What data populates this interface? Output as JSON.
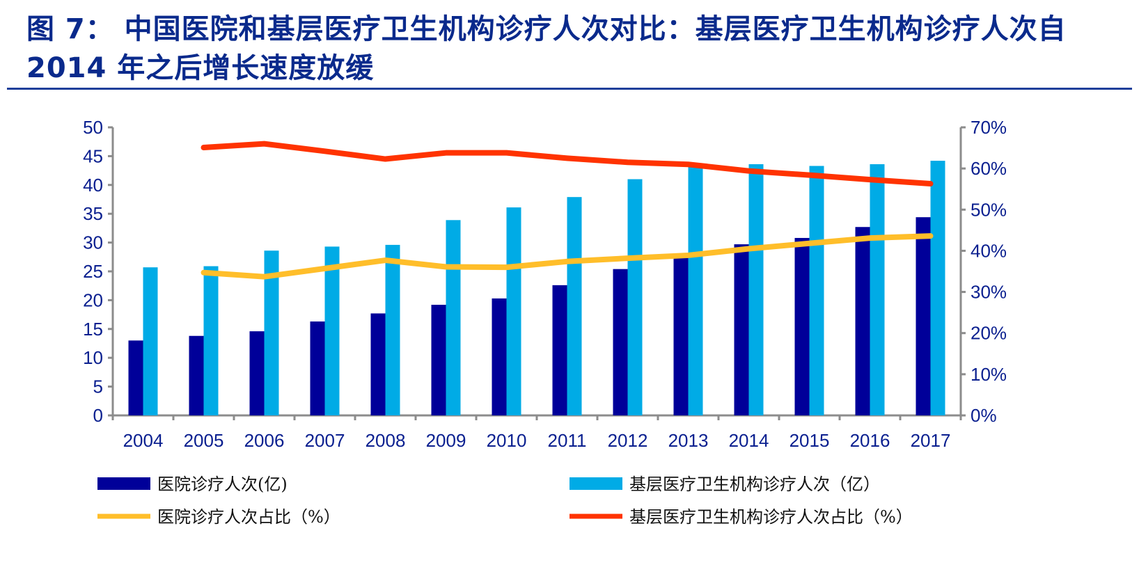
{
  "title": "图 7： 中国医院和基层医疗卫生机构诊疗人次对比：基层医疗卫生机构诊疗人次自2014 年之后增长速度放缓",
  "chart_data": {
    "type": "bar",
    "categories": [
      "2004",
      "2005",
      "2006",
      "2007",
      "2008",
      "2009",
      "2010",
      "2011",
      "2012",
      "2013",
      "2014",
      "2015",
      "2016",
      "2017"
    ],
    "y_left": {
      "range": [
        0,
        50
      ],
      "ticks": [
        "0",
        "5",
        "10",
        "15",
        "20",
        "25",
        "30",
        "35",
        "40",
        "45",
        "50"
      ]
    },
    "y_right": {
      "range": [
        0,
        70
      ],
      "ticks": [
        "0%",
        "10%",
        "20%",
        "30%",
        "40%",
        "50%",
        "60%",
        "70%"
      ]
    },
    "grid": false,
    "legend_position": "bottom",
    "series": [
      {
        "name": "医院诊疗人次(亿)",
        "type": "bar",
        "axis": "left",
        "color": "#000099",
        "values": [
          13.0,
          13.8,
          14.6,
          16.3,
          17.7,
          19.2,
          20.3,
          22.6,
          25.4,
          27.4,
          29.7,
          30.8,
          32.7,
          34.4
        ]
      },
      {
        "name": "基层医疗卫生机构诊疗人次（亿）",
        "type": "bar",
        "axis": "left",
        "color": "#00abe6",
        "values": [
          25.7,
          25.9,
          28.6,
          29.3,
          29.6,
          33.9,
          36.1,
          37.9,
          41.0,
          43.6,
          43.6,
          43.3,
          43.6,
          44.2
        ]
      },
      {
        "name": "医院诊疗人次占比（%）",
        "type": "line",
        "axis": "right",
        "color": "#ffbe2a",
        "values": [
          null,
          34.7,
          33.7,
          35.7,
          37.7,
          36.1,
          36.0,
          37.4,
          38.2,
          38.9,
          40.5,
          41.8,
          43.1,
          43.6
        ]
      },
      {
        "name": "基层医疗卫生机构诊疗人次占比（%）",
        "type": "line",
        "axis": "right",
        "color": "#ff3300",
        "values": [
          null,
          65.1,
          66.0,
          64.2,
          62.3,
          63.8,
          63.8,
          62.5,
          61.5,
          61.0,
          59.4,
          58.4,
          57.3,
          56.3
        ]
      }
    ]
  }
}
